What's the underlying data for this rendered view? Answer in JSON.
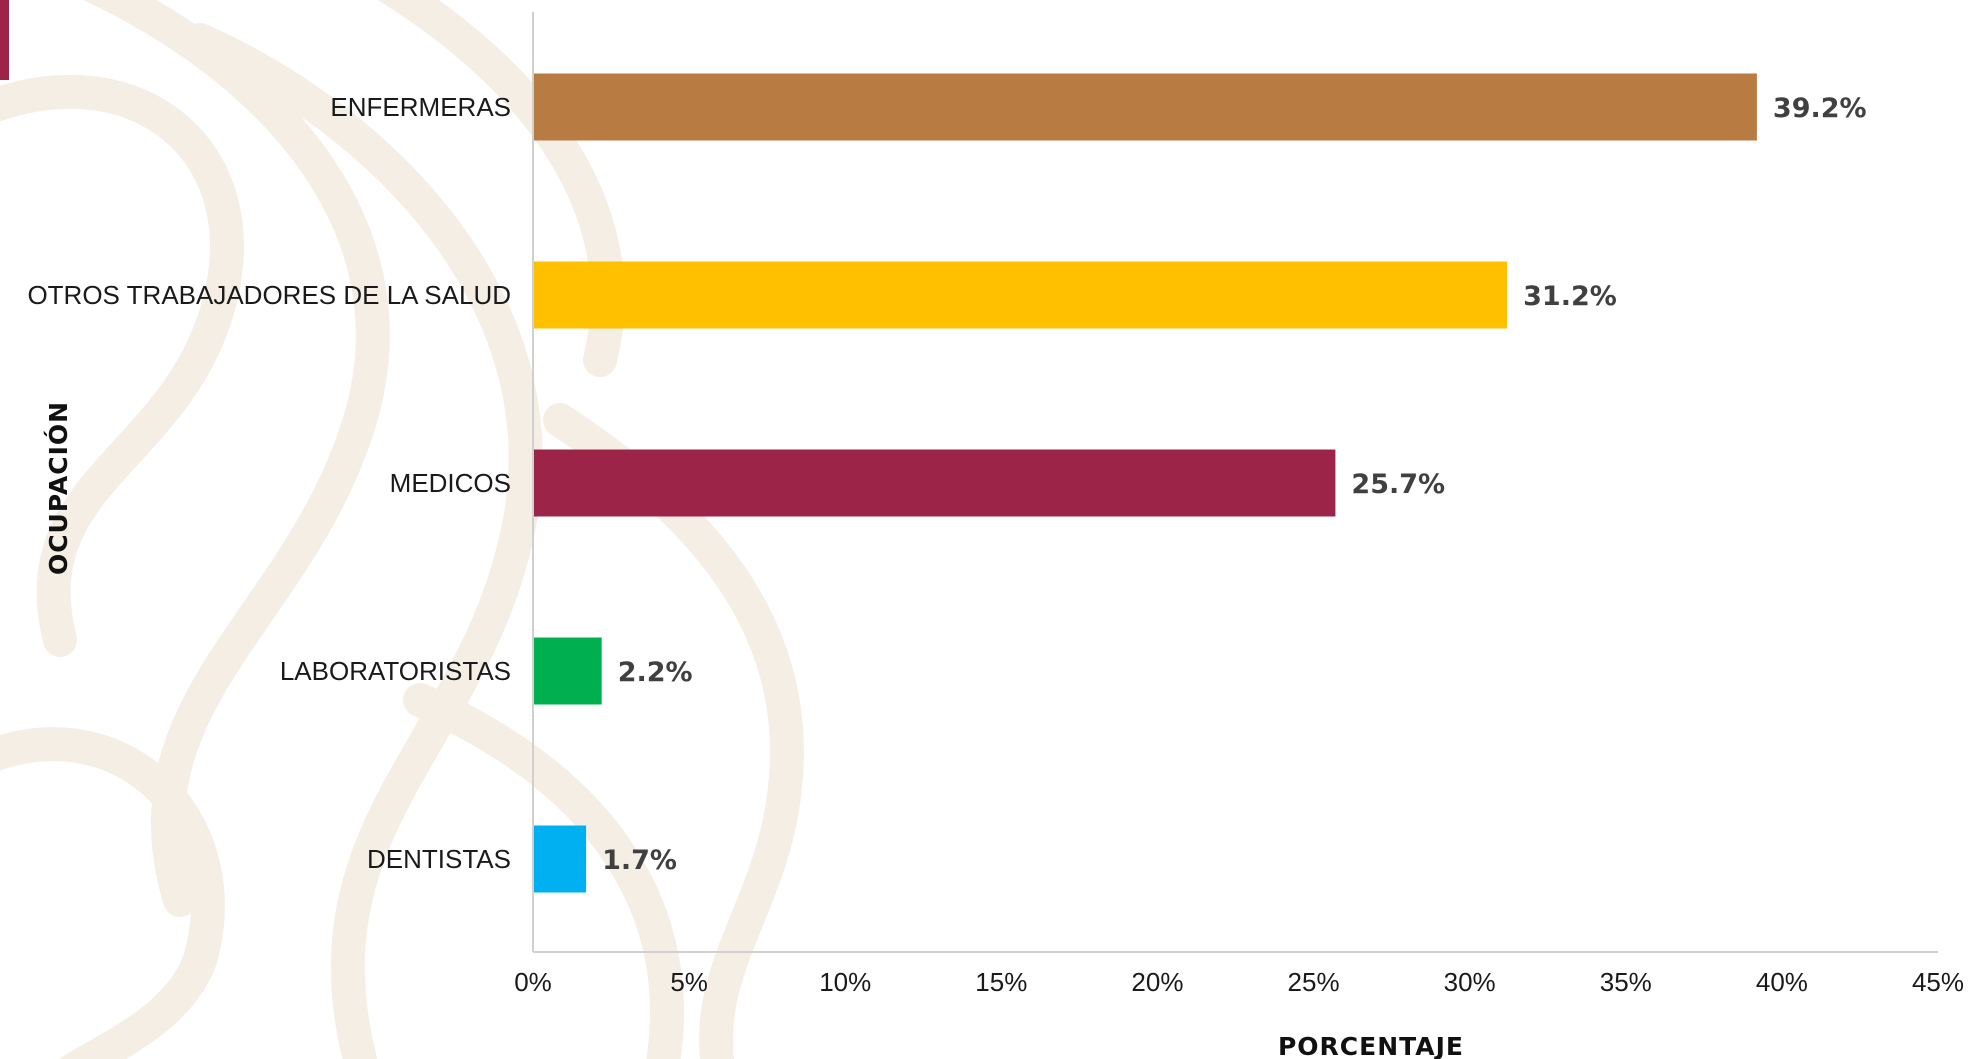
{
  "colors": {
    "accent": "#9d2449",
    "axis": "#d0d0d0",
    "background_pattern": "#f3ece2"
  },
  "chart_data": {
    "type": "bar",
    "orientation": "horizontal",
    "title": "",
    "xlabel": "PORCENTAJE",
    "ylabel": "OCUPACIÓN",
    "xlim": [
      0,
      45
    ],
    "x_ticks": [
      "0%",
      "5%",
      "10%",
      "15%",
      "20%",
      "25%",
      "30%",
      "35%",
      "40%",
      "45%"
    ],
    "x_tick_values": [
      0,
      5,
      10,
      15,
      20,
      25,
      30,
      35,
      40,
      45
    ],
    "grid": false,
    "categories": [
      "ENFERMERAS",
      "OTROS TRABAJADORES DE LA SALUD",
      "MEDICOS",
      "LABORATORISTAS",
      "DENTISTAS"
    ],
    "values": [
      39.2,
      31.2,
      25.7,
      2.2,
      1.7
    ],
    "value_labels": [
      "39.2%",
      "31.2%",
      "25.7%",
      "2.2%",
      "1.7%"
    ],
    "bar_colors": [
      "#b87b41",
      "#ffc000",
      "#9d2449",
      "#00b050",
      "#00b0f0"
    ]
  }
}
